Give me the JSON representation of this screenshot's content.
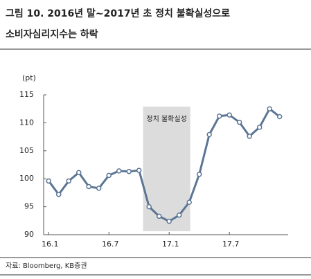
{
  "chart_data": {
    "type": "line",
    "title": "그림 10. 2016년 말~2017년 초 정치 불확실성으로",
    "subtitle": "소비자심리지수는 하락",
    "y_label": "(pt)",
    "source": "자료: Bloomberg, KB증권",
    "x": [
      0,
      1,
      2,
      3,
      4,
      5,
      6,
      7,
      8,
      9,
      10,
      11,
      12,
      13,
      14,
      15,
      16,
      17,
      18,
      19,
      20,
      21,
      22,
      23
    ],
    "series": [
      {
        "color": "#5b7594",
        "values": [
          99.6,
          97.2,
          99.6,
          101.1,
          98.6,
          98.3,
          100.6,
          101.4,
          101.3,
          101.5,
          95.0,
          93.3,
          92.4,
          93.5,
          95.8,
          100.8,
          107.9,
          111.2,
          111.4,
          110.1,
          107.6,
          109.2,
          112.5,
          111.1
        ]
      }
    ],
    "xlim": [
      -0.5,
      23.85
    ],
    "xticks": [
      {
        "value": 0,
        "label": "16.1"
      },
      {
        "value": 6,
        "label": "16.7"
      },
      {
        "value": 12,
        "label": "17.1"
      },
      {
        "value": 18,
        "label": "17.7"
      }
    ],
    "ylim": [
      90,
      115
    ],
    "yticks": [
      90,
      95,
      100,
      105,
      110,
      115
    ],
    "highlight": {
      "label": "정치 불확실성",
      "from": 9.4,
      "to": 14.1,
      "color": "#dcdcdc"
    }
  }
}
